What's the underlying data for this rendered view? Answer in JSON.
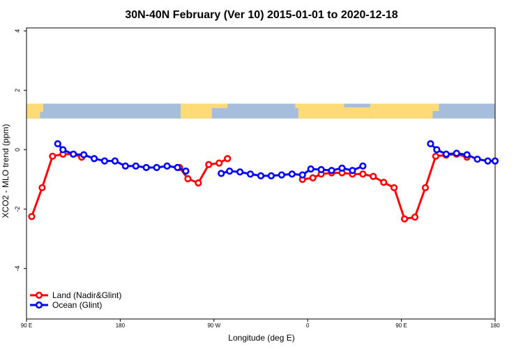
{
  "chart_data": {
    "type": "line",
    "title": "30N-40N February (Ver 10)   2015-01-01 to 2020-12-18",
    "xlabel": "Longitude (deg E)",
    "ylabel": "XCO2 - MLO trend (ppm)",
    "xlim": [
      90,
      540
    ],
    "ylim": [
      -5.7,
      4.1
    ],
    "x_ticks": [
      {
        "value": 90,
        "label": "90 E"
      },
      {
        "value": 180,
        "label": "180"
      },
      {
        "value": 270,
        "label": "90 W"
      },
      {
        "value": 360,
        "label": "0"
      },
      {
        "value": 450,
        "label": "90 E"
      },
      {
        "value": 540,
        "label": "180"
      }
    ],
    "y_ticks": [
      {
        "value": 4,
        "label": "4"
      },
      {
        "value": 2,
        "label": "2"
      },
      {
        "value": 0,
        "label": "0"
      },
      {
        "value": -2,
        "label": "-2"
      },
      {
        "value": -4,
        "label": "-4"
      }
    ],
    "grid": false,
    "legend_position": "bottom-left",
    "map_strip": {
      "y_top": 1.55,
      "y_bottom": 1.05,
      "land_color": "#ffdb78",
      "ocean_color": "#a6bddb"
    },
    "series": [
      {
        "name": "Land (Nadir&Glint)",
        "color": "#ff0000",
        "segments": [
          [
            [
              95,
              -2.25
            ],
            [
              105,
              -1.28
            ],
            [
              115,
              -0.22
            ],
            [
              125,
              -0.15
            ],
            [
              135,
              -0.15
            ],
            [
              143,
              -0.25
            ]
          ],
          [
            [
              237,
              -0.6
            ],
            [
              245,
              -0.98
            ],
            [
              255,
              -1.12
            ],
            [
              265,
              -0.5
            ],
            [
              275,
              -0.45
            ],
            [
              283,
              -0.3
            ]
          ],
          [
            [
              355,
              -1.0
            ],
            [
              365,
              -0.95
            ],
            [
              373,
              -0.82
            ],
            [
              383,
              -0.78
            ],
            [
              393,
              -0.78
            ],
            [
              403,
              -0.82
            ],
            [
              413,
              -0.82
            ],
            [
              423,
              -0.9
            ],
            [
              433,
              -1.1
            ],
            [
              443,
              -1.28
            ],
            [
              453,
              -2.33
            ],
            [
              463,
              -2.27
            ],
            [
              473,
              -1.28
            ],
            [
              483,
              -0.22
            ],
            [
              493,
              -0.18
            ],
            [
              503,
              -0.15
            ],
            [
              513,
              -0.25
            ]
          ]
        ]
      },
      {
        "name": "Ocean (Glint)",
        "color": "#0000ff",
        "segments": [
          [
            [
              120,
              0.2
            ],
            [
              125,
              0.0
            ],
            [
              135,
              -0.15
            ],
            [
              145,
              -0.17
            ],
            [
              155,
              -0.3
            ],
            [
              165,
              -0.38
            ],
            [
              175,
              -0.38
            ],
            [
              185,
              -0.55
            ],
            [
              195,
              -0.55
            ],
            [
              205,
              -0.6
            ],
            [
              215,
              -0.6
            ],
            [
              225,
              -0.55
            ],
            [
              235,
              -0.6
            ],
            [
              243,
              -0.72
            ]
          ],
          [
            [
              277,
              -0.8
            ],
            [
              285,
              -0.72
            ],
            [
              295,
              -0.75
            ],
            [
              305,
              -0.82
            ],
            [
              315,
              -0.88
            ],
            [
              325,
              -0.88
            ],
            [
              335,
              -0.85
            ],
            [
              345,
              -0.82
            ],
            [
              355,
              -0.85
            ],
            [
              363,
              -0.65
            ],
            [
              373,
              -0.67
            ],
            [
              383,
              -0.7
            ],
            [
              393,
              -0.62
            ],
            [
              403,
              -0.7
            ],
            [
              413,
              -0.55
            ]
          ],
          [
            [
              478,
              0.2
            ],
            [
              484,
              0.0
            ],
            [
              493,
              -0.15
            ],
            [
              503,
              -0.12
            ],
            [
              513,
              -0.17
            ],
            [
              523,
              -0.32
            ],
            [
              533,
              -0.38
            ],
            [
              540,
              -0.38
            ]
          ]
        ]
      }
    ]
  }
}
